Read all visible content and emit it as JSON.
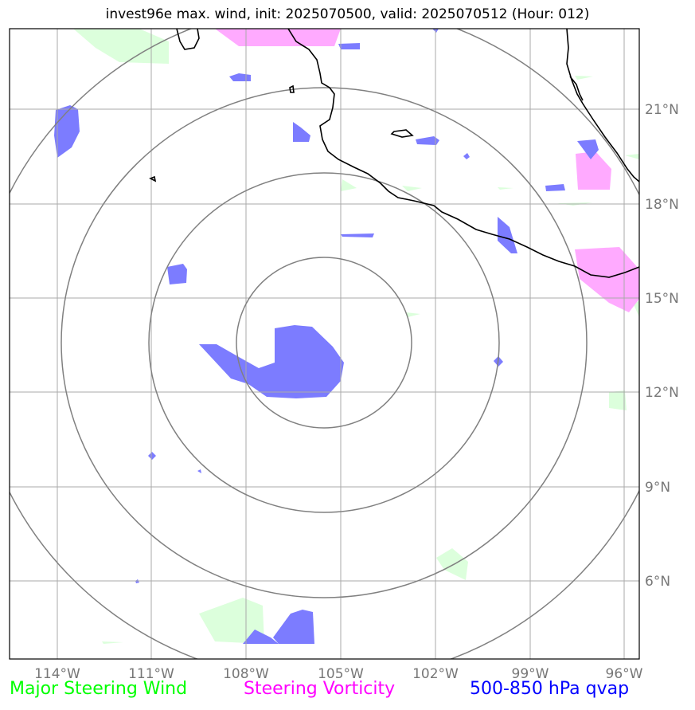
{
  "title": "invest96e max. wind, init: 2025070500, valid: 2025070512 (Hour: 012)",
  "colors": {
    "steering_wind": "#00ff00",
    "steering_vorticity": "#ff00ff",
    "qvap": "#0000ff",
    "wind_fill": "#dcffdc",
    "vorticity_fill": "#ffaaff",
    "qvap_fill": "#7c7cff",
    "grid": "#aaaaaa",
    "range_rings": "#808080",
    "coastline": "#000000",
    "axis_label": "#777777"
  },
  "map": {
    "lon_labels": [
      "114°W",
      "111°W",
      "108°W",
      "105°W",
      "102°W",
      "99°W",
      "96°W"
    ],
    "lat_labels": [
      "21°N",
      "18°N",
      "15°N",
      "12°N",
      "9°N",
      "6°N"
    ],
    "storm_center": {
      "lon": -105.0,
      "lat": 13.6
    },
    "range_ring_count": 4
  },
  "legend": {
    "steering_wind": "Major Steering Wind",
    "steering_vorticity": "Steering Vorticity",
    "qvap": "500-850 hPa qvap"
  }
}
